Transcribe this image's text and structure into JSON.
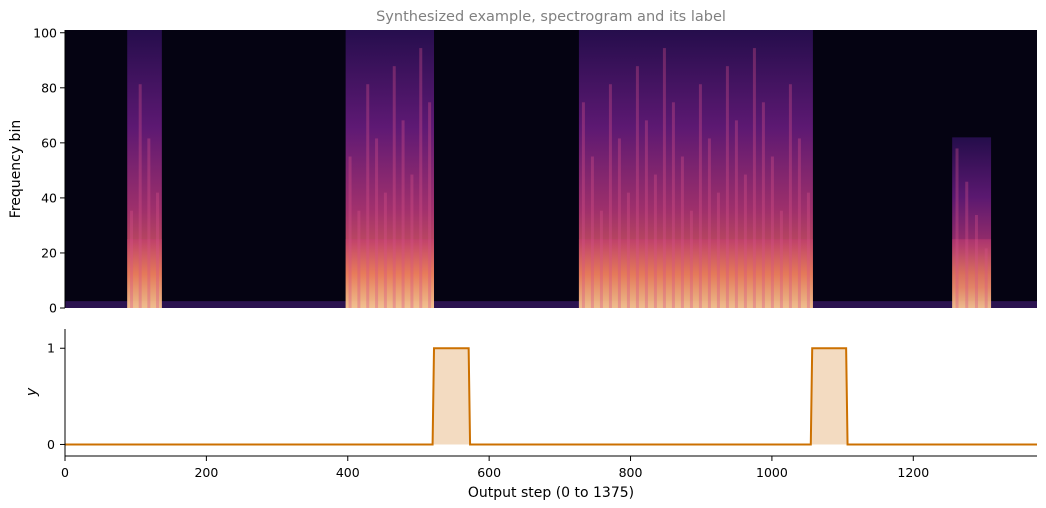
{
  "chart_data": [
    {
      "type": "heatmap",
      "title": "Synthesized example, spectrogram and its label",
      "xlabel": "",
      "ylabel": "Frequency bin",
      "xlim": [
        0,
        1375
      ],
      "ylim": [
        0,
        101
      ],
      "yticks": [
        0,
        20,
        40,
        60,
        80,
        100
      ],
      "colormap": "magma",
      "active_regions": [
        {
          "start": 88,
          "end": 137,
          "intensity": 0.9,
          "freq_extent": 101
        },
        {
          "start": 397,
          "end": 522,
          "intensity": 0.95,
          "freq_extent": 101
        },
        {
          "start": 727,
          "end": 1058,
          "intensity": 0.9,
          "freq_extent": 101
        },
        {
          "start": 1255,
          "end": 1310,
          "intensity": 0.85,
          "freq_extent": 62
        }
      ]
    },
    {
      "type": "area",
      "title": "",
      "xlabel": "Output step (0 to 1375)",
      "ylabel": "y",
      "xlim": [
        0,
        1375
      ],
      "ylim": [
        -0.12,
        1.2
      ],
      "xticks": [
        0,
        200,
        400,
        600,
        800,
        1000,
        1200
      ],
      "yticks": [
        0,
        1
      ],
      "series": [
        {
          "x": [
            0,
            520,
            522,
            571,
            573,
            1055,
            1057,
            1105,
            1107,
            1375
          ],
          "y": [
            0,
            0,
            1,
            1,
            0,
            0,
            1,
            1,
            0,
            0
          ]
        }
      ]
    }
  ],
  "colors": {
    "line": "#cc7000",
    "fill": "#f3dbc1",
    "title": "#808080",
    "background_spectrogram": "#050312"
  }
}
